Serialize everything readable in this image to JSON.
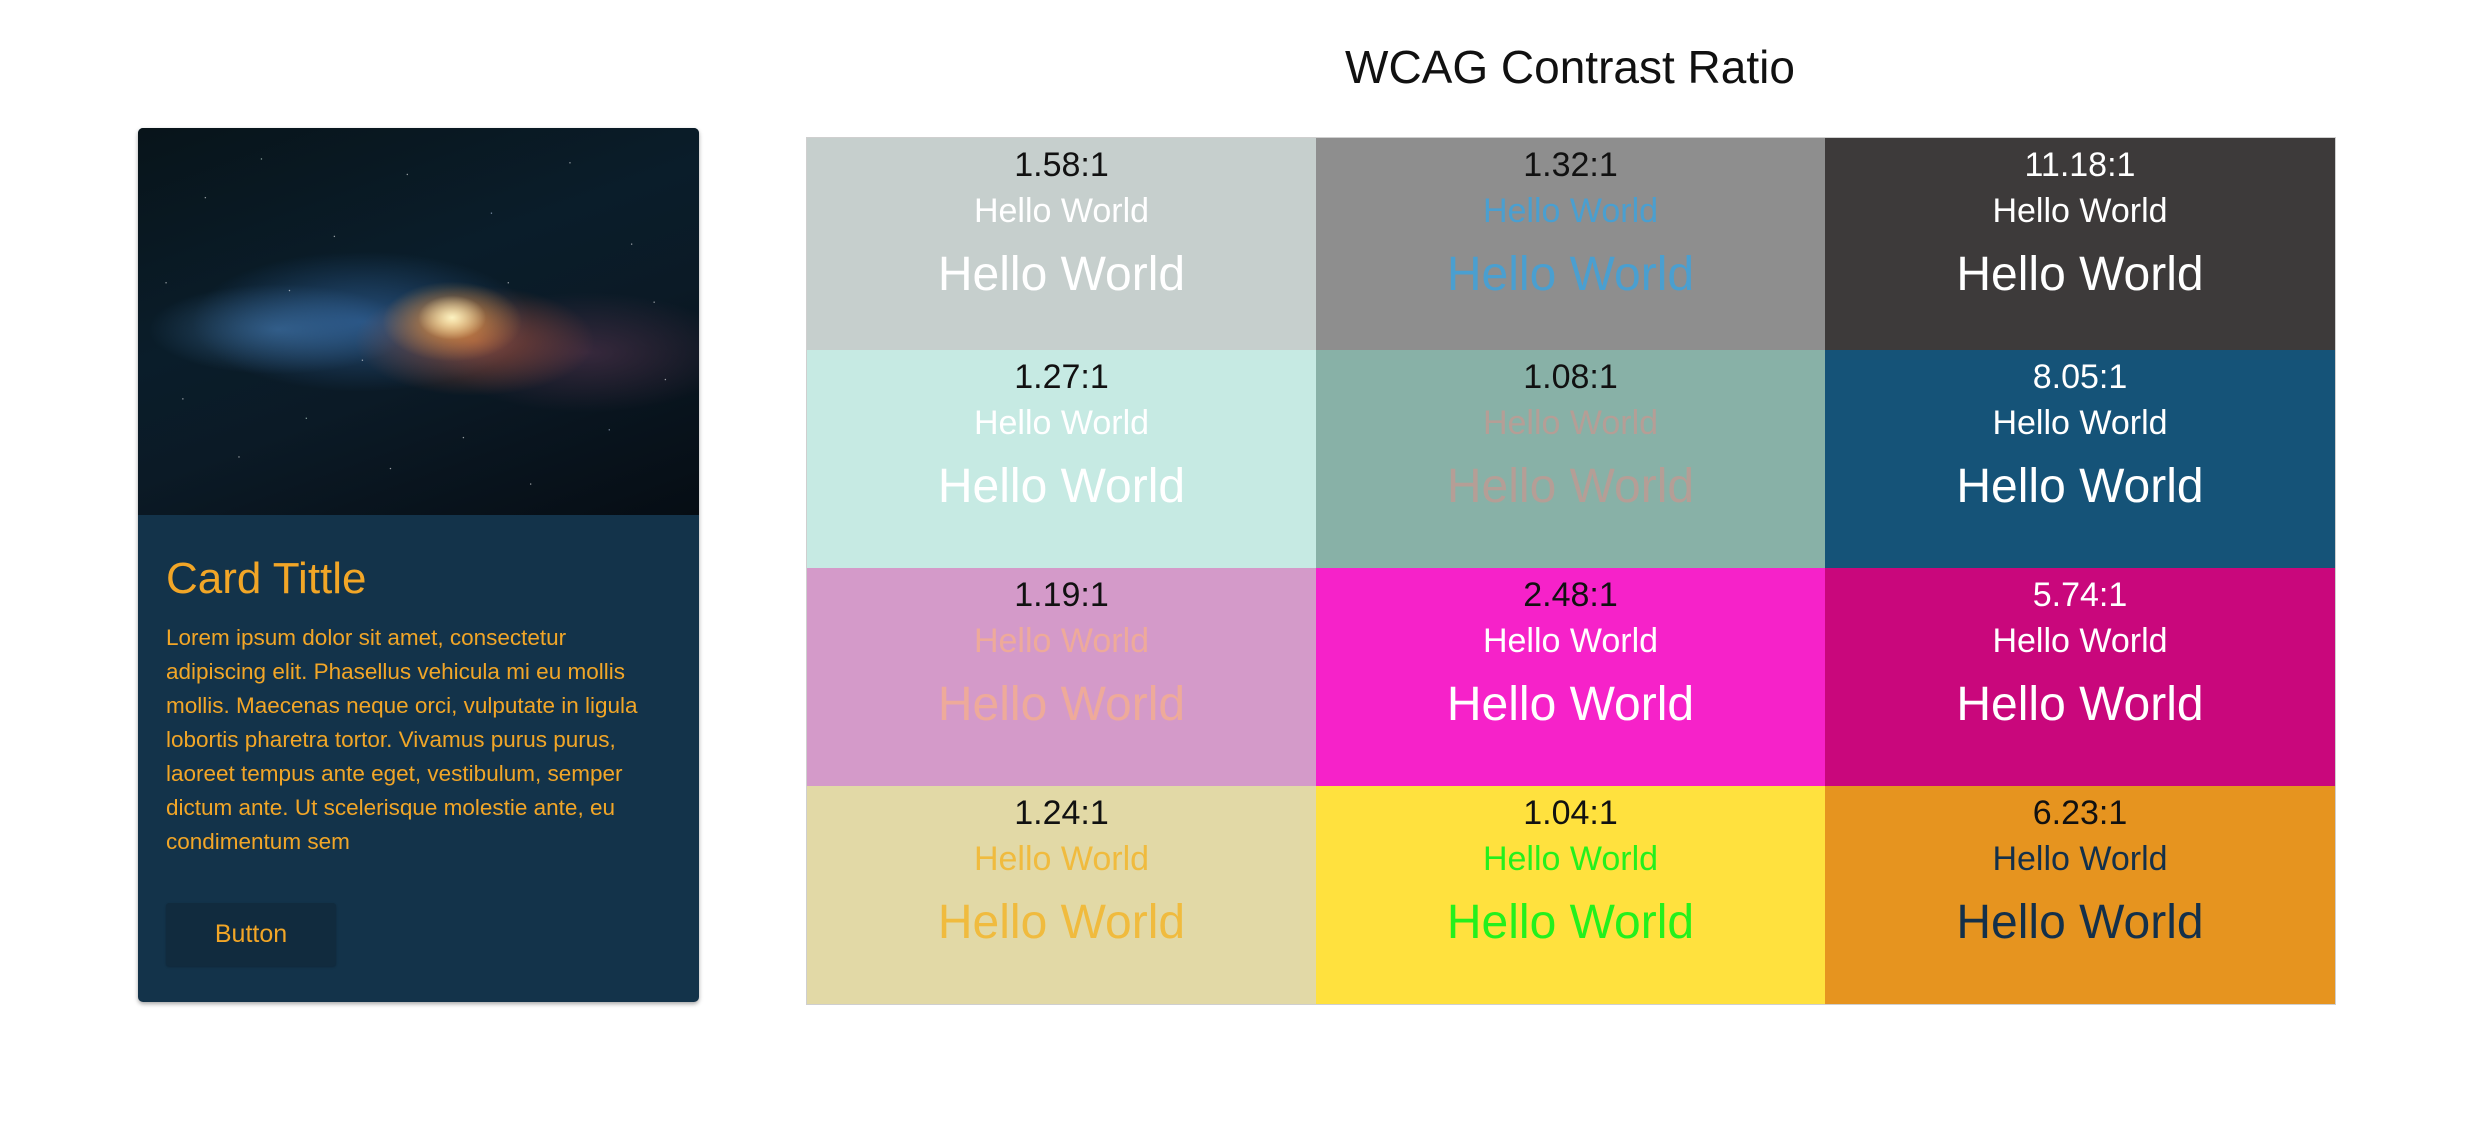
{
  "card": {
    "title": "Card Tittle",
    "body": "Lorem ipsum dolor sit amet, consectetur adipiscing elit. Phasellus vehicula mi eu mollis mollis. Maecenas neque orci, vulputate in ligula lobortis pharetra tortor. Vivamus purus purus, laoreet tempus ante eget, vestibulum, semper dictum ante. Ut scelerisque molestie ante, eu condimentum sem",
    "button_label": "Button",
    "colors": {
      "background": "#13334a",
      "text": "#f2a627",
      "button_background": "#112b3e"
    }
  },
  "grid": {
    "title": "WCAG Contrast Ratio",
    "sample_text": "Hello World",
    "cells": [
      {
        "ratio": "1.58:1",
        "bg": "#c6cfcd",
        "fg": "#ffffff",
        "ratio_color": "#111111"
      },
      {
        "ratio": "1.32:1",
        "bg": "#8e8e8e",
        "fg": "#4a9fd0",
        "ratio_color": "#111111"
      },
      {
        "ratio": "11.18:1",
        "bg": "#3d3a3a",
        "fg": "#ffffff",
        "ratio_color": "#ffffff"
      },
      {
        "ratio": "1.27:1",
        "bg": "#c6eae3",
        "fg": "#ffffff",
        "ratio_color": "#111111"
      },
      {
        "ratio": "1.08:1",
        "bg": "#88b1a7",
        "fg": "#b59e96",
        "ratio_color": "#111111"
      },
      {
        "ratio": "8.05:1",
        "bg": "#155378",
        "fg": "#ffffff",
        "ratio_color": "#ffffff"
      },
      {
        "ratio": "1.19:1",
        "bg": "#d49ac9",
        "fg": "#eeaa9a",
        "ratio_color": "#111111"
      },
      {
        "ratio": "2.48:1",
        "bg": "#f622c9",
        "fg": "#ffffff",
        "ratio_color": "#111111"
      },
      {
        "ratio": "5.74:1",
        "bg": "#c9077c",
        "fg": "#ffffff",
        "ratio_color": "#ffffff"
      },
      {
        "ratio": "1.24:1",
        "bg": "#e2d9a6",
        "fg": "#f0bb3e",
        "ratio_color": "#111111"
      },
      {
        "ratio": "1.04:1",
        "bg": "#ffe13e",
        "fg": "#24f01c",
        "ratio_color": "#111111"
      },
      {
        "ratio": "6.23:1",
        "bg": "#e6941f",
        "fg": "#14304a",
        "ratio_color": "#111111"
      }
    ]
  }
}
